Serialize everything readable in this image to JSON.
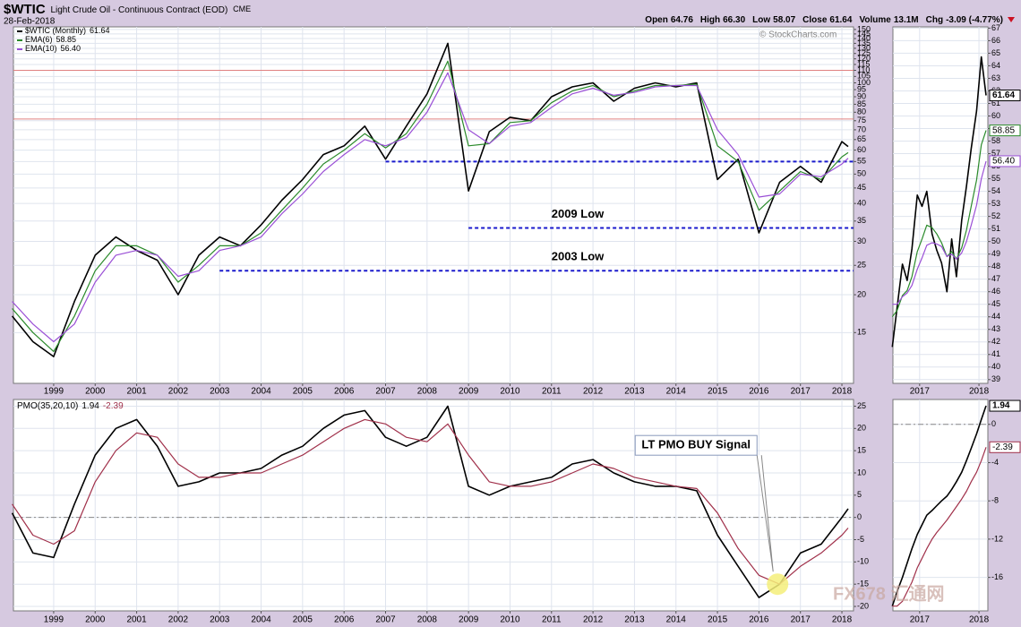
{
  "header": {
    "symbol": "$WTIC",
    "name": "Light Crude Oil - Continuous Contract (EOD)",
    "exchange": "CME",
    "date": "28-Feb-2018",
    "quote": [
      {
        "label": "Open",
        "value": "64.76"
      },
      {
        "label": "High",
        "value": "66.30"
      },
      {
        "label": "Low",
        "value": "58.07"
      },
      {
        "label": "Close",
        "value": "61.64"
      },
      {
        "label": "Volume",
        "value": "13.1M"
      },
      {
        "label": "Chg",
        "value": "-3.09 (-4.77%)"
      }
    ],
    "watermark": "© StockCharts.com",
    "logo": "FX678 汇通网"
  },
  "chart_data": [
    {
      "type": "line",
      "log_scale": true,
      "grid": true,
      "legend": "upper left",
      "x": [
        1998.0,
        1998.5,
        1999.0,
        1999.5,
        2000.0,
        2000.5,
        2001.0,
        2001.5,
        2002.0,
        2002.5,
        2003.0,
        2003.5,
        2004.0,
        2004.5,
        2005.0,
        2005.5,
        2006.0,
        2006.5,
        2007.0,
        2007.5,
        2008.0,
        2008.5,
        2009.0,
        2009.5,
        2010.0,
        2010.5,
        2011.0,
        2011.5,
        2012.0,
        2012.5,
        2013.0,
        2013.5,
        2014.0,
        2014.5,
        2015.0,
        2015.5,
        2016.0,
        2016.5,
        2017.0,
        2017.5,
        2018.0,
        2018.15
      ],
      "xlim": [
        1998.03,
        2018.28
      ],
      "xticks": [
        1999,
        2000,
        2001,
        2002,
        2003,
        2004,
        2005,
        2006,
        2007,
        2008,
        2009,
        2010,
        2011,
        2012,
        2013,
        2014,
        2015,
        2016,
        2017,
        2018
      ],
      "ylim": [
        10.2,
        153
      ],
      "yticks": [
        15,
        20,
        25,
        30,
        35,
        40,
        45,
        50,
        55,
        60,
        65,
        70,
        75,
        80,
        85,
        90,
        95,
        100,
        105,
        110,
        115,
        120,
        125,
        130,
        135,
        140,
        145,
        150
      ],
      "series": [
        {
          "name": "$WTIC (Monthly)",
          "color": "#000000",
          "values": [
            17,
            14,
            12.5,
            19,
            27,
            31,
            28,
            26,
            20,
            27,
            31,
            29,
            34,
            41,
            48,
            58,
            62,
            72,
            56,
            72,
            92,
            135,
            44,
            69,
            77,
            75,
            90,
            97,
            100,
            87,
            96,
            100,
            97,
            100,
            48,
            56,
            32,
            47,
            53,
            47,
            64,
            61.64
          ]
        },
        {
          "name": "EMA(6)",
          "color": "#2a8a2a",
          "values": [
            18,
            15,
            13,
            17,
            24,
            29,
            29,
            27,
            22,
            25,
            29,
            29,
            32,
            38,
            45,
            54,
            60,
            68,
            61,
            68,
            85,
            118,
            62,
            63,
            74,
            75,
            86,
            94,
            98,
            90,
            94,
            98,
            98,
            99,
            62,
            55,
            38,
            44,
            51,
            48,
            57,
            58.85
          ]
        },
        {
          "name": "EMA(10)",
          "color": "#9a4fd6",
          "values": [
            19,
            16,
            14,
            16,
            22,
            27,
            28,
            27,
            23,
            24,
            28,
            29,
            31,
            37,
            43,
            51,
            58,
            65,
            62,
            66,
            80,
            108,
            70,
            63,
            72,
            74,
            83,
            92,
            96,
            91,
            93,
            97,
            98,
            98,
            70,
            58,
            42,
            43,
            50,
            49,
            54,
            56.4
          ],
          "value_labels": [
            null,
            null,
            null,
            null,
            null,
            null,
            null,
            null,
            null,
            null,
            null,
            null,
            null,
            null,
            null,
            null,
            null,
            null,
            null,
            null,
            null,
            null,
            null,
            null,
            null,
            null,
            null,
            null,
            null,
            null,
            null,
            null,
            null,
            null,
            null,
            null,
            null,
            null,
            null,
            null,
            null,
            "56.40"
          ]
        }
      ],
      "reference_lines": [
        {
          "value": 110,
          "color": "#e08080",
          "style": "solid"
        },
        {
          "value": 76,
          "color": "#e08080",
          "style": "solid"
        },
        {
          "value": 55,
          "x_start": 2007.0,
          "color": "#1a1acc",
          "style": "dashed"
        },
        {
          "value": 33.2,
          "x_start": 2009.0,
          "color": "#1a1acc",
          "style": "dashed",
          "label": "2009 Low"
        },
        {
          "value": 24,
          "x_start": 2003.0,
          "color": "#1a1acc",
          "style": "dashed",
          "label": "2003 Low"
        }
      ]
    },
    {
      "type": "line",
      "grid": true,
      "last_value_labels": true,
      "x": [
        2016.54,
        2016.62,
        2016.71,
        2016.79,
        2016.87,
        2016.96,
        2017.04,
        2017.12,
        2017.21,
        2017.29,
        2017.37,
        2017.46,
        2017.54,
        2017.62,
        2017.71,
        2017.79,
        2017.87,
        2017.96,
        2018.04,
        2018.12
      ],
      "xlim": [
        2016.55,
        2018.15
      ],
      "xticks": [
        2017,
        2018
      ],
      "ylim": [
        38.7,
        67.1
      ],
      "yticks": [
        39,
        40,
        41,
        42,
        43,
        44,
        45,
        46,
        47,
        48,
        49,
        50,
        51,
        52,
        53,
        54,
        55,
        56,
        57,
        58,
        59,
        60,
        61,
        62,
        63,
        64,
        65,
        66,
        67
      ],
      "series": [
        {
          "color": "#000000",
          "values": [
            41.6,
            44.7,
            48.2,
            46.9,
            49.4,
            53.7,
            52.8,
            54,
            50.6,
            49.3,
            48.3,
            46,
            50.2,
            47.2,
            51.7,
            54.4,
            57.4,
            60.4,
            64.7,
            61.64
          ]
        },
        {
          "color": "#2a8a2a",
          "values": [
            44,
            44.5,
            45.7,
            46.1,
            47.2,
            49.2,
            50.2,
            51.3,
            51.1,
            50.6,
            49.9,
            48.8,
            49.2,
            48.6,
            49.5,
            50.9,
            52.8,
            54.9,
            57.7,
            58.85
          ]
        },
        {
          "color": "#9a4fd6",
          "values": [
            45,
            45,
            45.6,
            45.9,
            46.5,
            47.8,
            48.7,
            49.7,
            49.9,
            49.8,
            49.6,
            48.8,
            49,
            48.6,
            49.1,
            50,
            51.3,
            52.9,
            55,
            56.4
          ],
          "value_labels": [
            null,
            null,
            null,
            null,
            null,
            null,
            null,
            null,
            null,
            null,
            null,
            null,
            null,
            null,
            null,
            null,
            null,
            null,
            null,
            "56.40"
          ]
        }
      ]
    },
    {
      "type": "line",
      "grid": true,
      "legend": "upper left",
      "legend_inline": true,
      "x": [
        1998.0,
        1998.5,
        1999.0,
        1999.5,
        2000.0,
        2000.5,
        2001.0,
        2001.5,
        2002.0,
        2002.5,
        2003.0,
        2003.5,
        2004.0,
        2004.5,
        2005.0,
        2005.5,
        2006.0,
        2006.5,
        2007.0,
        2007.5,
        2008.0,
        2008.5,
        2009.0,
        2009.5,
        2010.0,
        2010.5,
        2011.0,
        2011.5,
        2012.0,
        2012.5,
        2013.0,
        2013.5,
        2014.0,
        2014.5,
        2015.0,
        2015.5,
        2016.0,
        2016.5,
        2017.0,
        2017.5,
        2018.0,
        2018.15
      ],
      "xlim": [
        1998.03,
        2018.28
      ],
      "xticks": [
        1999,
        2000,
        2001,
        2002,
        2003,
        2004,
        2005,
        2006,
        2007,
        2008,
        2009,
        2010,
        2011,
        2012,
        2013,
        2014,
        2015,
        2016,
        2017,
        2018
      ],
      "ylim": [
        -21,
        26.5
      ],
      "yticks": [
        25,
        20,
        15,
        10,
        5,
        0,
        -5,
        -10,
        -15,
        -20
      ],
      "series": [
        {
          "name": "PMO(35,20,10)",
          "color": "#000000",
          "values": [
            1,
            -8,
            -9,
            3,
            14,
            20,
            22,
            16,
            7,
            8,
            10,
            10,
            11,
            14,
            16,
            20,
            23,
            24,
            18,
            16,
            18,
            25,
            7,
            5,
            7,
            8,
            9,
            12,
            13,
            10,
            8,
            7,
            7,
            6,
            -4,
            -11,
            -18,
            -15,
            -8,
            -6,
            0,
            1.94
          ]
        },
        {
          "color": "#a0304a",
          "values": [
            3,
            -4,
            -6,
            -3,
            8,
            15,
            19,
            18,
            12,
            9,
            9,
            10,
            10,
            12,
            14,
            17,
            20,
            22,
            21,
            18,
            17,
            21,
            14,
            8,
            7,
            7,
            8,
            10,
            12,
            11,
            9,
            8,
            7,
            6.5,
            1,
            -7,
            -13,
            -15,
            -11,
            -8,
            -4,
            -2.39
          ]
        }
      ],
      "reference_lines": [
        {
          "value": 0,
          "color": "#888888",
          "style": "dashdot"
        }
      ],
      "annotation": {
        "text": "LT PMO BUY Signal",
        "x": 2016.45,
        "y": -15
      }
    },
    {
      "type": "line",
      "grid": true,
      "last_value_labels": true,
      "x": [
        2016.54,
        2016.62,
        2016.71,
        2016.79,
        2016.87,
        2016.96,
        2017.04,
        2017.12,
        2017.21,
        2017.29,
        2017.37,
        2017.46,
        2017.54,
        2017.62,
        2017.71,
        2017.79,
        2017.87,
        2017.96,
        2018.04,
        2018.12
      ],
      "xlim": [
        2016.55,
        2018.15
      ],
      "xticks": [
        2017,
        2018
      ],
      "ylim": [
        -19.5,
        2.6
      ],
      "yticks": [
        0,
        -4,
        -8,
        -12,
        -16
      ],
      "series": [
        {
          "color": "#000000",
          "values": [
            -19,
            -17.5,
            -16,
            -14.5,
            -13,
            -11.5,
            -10.5,
            -9.5,
            -9,
            -8.5,
            -8,
            -7.5,
            -6.8,
            -6,
            -5,
            -3.8,
            -2.5,
            -1,
            0.5,
            1.94
          ]
        },
        {
          "color": "#a0304a",
          "values": [
            -19,
            -19,
            -18.5,
            -17.5,
            -16.5,
            -15,
            -14,
            -13,
            -12,
            -11.3,
            -10.7,
            -10,
            -9.3,
            -8.6,
            -7.8,
            -7,
            -6,
            -5,
            -3.8,
            -2.39
          ]
        }
      ],
      "reference_lines": [
        {
          "value": 0,
          "color": "#888888",
          "style": "dashdot"
        }
      ]
    }
  ]
}
